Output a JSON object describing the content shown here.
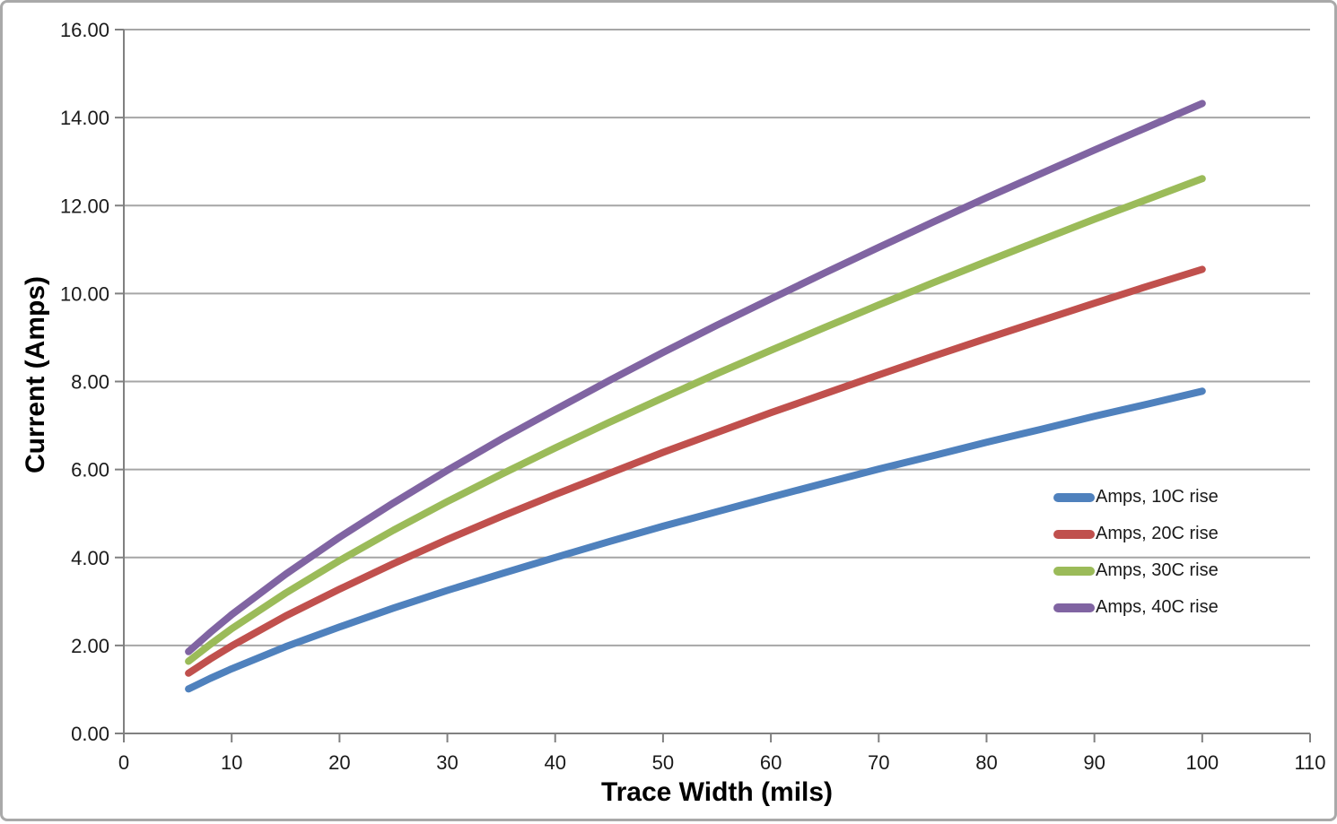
{
  "chart_data": {
    "type": "line",
    "title": "",
    "xlabel": "Trace Width (mils)",
    "ylabel": "Current (Amps)",
    "xlim": [
      0,
      110
    ],
    "ylim": [
      0,
      16
    ],
    "grid": "horizontal",
    "legend_position": "middle-right",
    "x_ticks": [
      0,
      10,
      20,
      30,
      40,
      50,
      60,
      70,
      80,
      90,
      100,
      110
    ],
    "x_tick_labels": [
      "0",
      "10",
      "20",
      "30",
      "40",
      "50",
      "60",
      "70",
      "80",
      "90",
      "100",
      "110"
    ],
    "y_ticks": [
      0,
      2,
      4,
      6,
      8,
      10,
      12,
      14,
      16
    ],
    "y_tick_labels": [
      "0.00",
      "2.00",
      "4.00",
      "6.00",
      "8.00",
      "10.00",
      "12.00",
      "14.00",
      "16.00"
    ],
    "x": [
      6,
      8,
      10,
      15,
      20,
      25,
      30,
      35,
      40,
      45,
      50,
      55,
      60,
      65,
      70,
      75,
      80,
      85,
      90,
      95,
      100
    ],
    "series": [
      {
        "name": "Amps, 10C rise",
        "color": "#4F81BD",
        "values": [
          1.01,
          1.25,
          1.47,
          1.97,
          2.42,
          2.85,
          3.25,
          3.63,
          4.0,
          4.36,
          4.71,
          5.04,
          5.37,
          5.69,
          6.01,
          6.31,
          6.62,
          6.91,
          7.21,
          7.49,
          7.78
        ]
      },
      {
        "name": "Amps, 20C rise",
        "color": "#C0504D",
        "values": [
          1.37,
          1.69,
          1.99,
          2.67,
          3.28,
          3.86,
          4.41,
          4.93,
          5.43,
          5.91,
          6.39,
          6.84,
          7.29,
          7.72,
          8.15,
          8.57,
          8.98,
          9.38,
          9.78,
          10.17,
          10.55
        ]
      },
      {
        "name": "Amps, 30C rise",
        "color": "#9BBB59",
        "values": [
          1.64,
          2.02,
          2.38,
          3.19,
          3.93,
          4.62,
          5.27,
          5.89,
          6.49,
          7.07,
          7.63,
          8.18,
          8.71,
          9.23,
          9.74,
          10.24,
          10.73,
          11.21,
          11.69,
          12.15,
          12.61
        ]
      },
      {
        "name": "Amps, 40C rise",
        "color": "#8064A2",
        "values": [
          1.86,
          2.29,
          2.7,
          3.62,
          4.46,
          5.24,
          5.98,
          6.69,
          7.36,
          8.02,
          8.66,
          9.28,
          9.88,
          10.47,
          11.05,
          11.62,
          12.18,
          12.72,
          13.26,
          13.79,
          14.32
        ]
      }
    ],
    "colors": {
      "gridline": "#A6A6A6",
      "axis": "#808080",
      "tick_text": "#1a1a1a"
    }
  }
}
